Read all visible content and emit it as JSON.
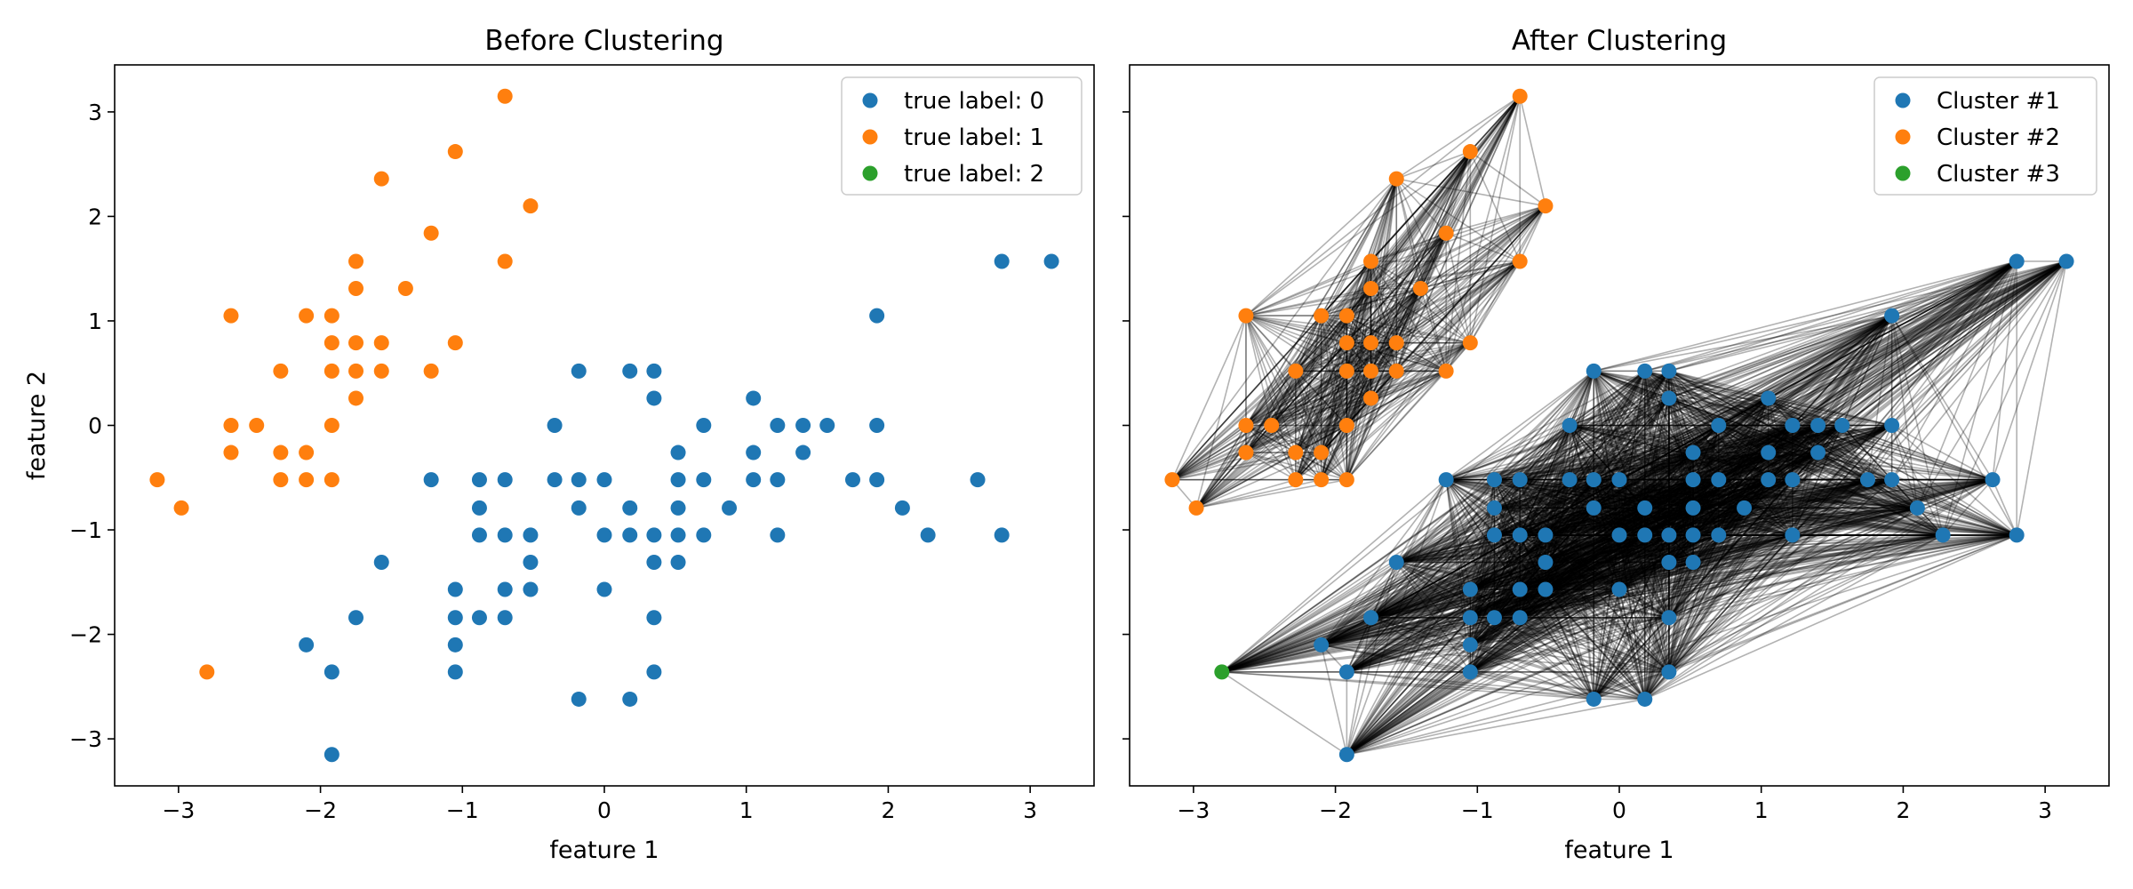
{
  "chart_data": [
    {
      "type": "scatter",
      "title": "Before Clustering",
      "xlabel": "feature 1",
      "ylabel": "feature 2",
      "xlim": [
        -3.45,
        3.45
      ],
      "ylim": [
        -3.45,
        3.45
      ],
      "xticks": [
        -3,
        -2,
        -1,
        0,
        1,
        2,
        3
      ],
      "yticks": [
        -3,
        -2,
        -1,
        0,
        1,
        2,
        3
      ],
      "grid": false,
      "legend_position": "top-right",
      "series": [
        {
          "name": "true label: 0",
          "color": "#1f77b4",
          "points": [
            [
              2.8,
              1.57
            ],
            [
              3.15,
              1.57
            ],
            [
              1.92,
              1.05
            ],
            [
              -0.18,
              0.52
            ],
            [
              0.18,
              0.52
            ],
            [
              0.35,
              0.52
            ],
            [
              0.35,
              0.26
            ],
            [
              1.05,
              0.26
            ],
            [
              -0.35,
              0.0
            ],
            [
              0.7,
              0.0
            ],
            [
              1.22,
              0.0
            ],
            [
              1.4,
              0.0
            ],
            [
              1.57,
              0.0
            ],
            [
              1.92,
              0.0
            ],
            [
              0.52,
              -0.26
            ],
            [
              1.05,
              -0.26
            ],
            [
              1.4,
              -0.26
            ],
            [
              -1.22,
              -0.52
            ],
            [
              -0.88,
              -0.52
            ],
            [
              -0.7,
              -0.52
            ],
            [
              -0.35,
              -0.52
            ],
            [
              -0.18,
              -0.52
            ],
            [
              0.0,
              -0.52
            ],
            [
              0.52,
              -0.52
            ],
            [
              0.7,
              -0.52
            ],
            [
              1.05,
              -0.52
            ],
            [
              1.22,
              -0.52
            ],
            [
              1.75,
              -0.52
            ],
            [
              1.92,
              -0.52
            ],
            [
              2.63,
              -0.52
            ],
            [
              -0.88,
              -0.79
            ],
            [
              -0.18,
              -0.79
            ],
            [
              0.18,
              -0.79
            ],
            [
              0.52,
              -0.79
            ],
            [
              0.88,
              -0.79
            ],
            [
              2.1,
              -0.79
            ],
            [
              -0.88,
              -1.05
            ],
            [
              -0.7,
              -1.05
            ],
            [
              -0.52,
              -1.05
            ],
            [
              0.0,
              -1.05
            ],
            [
              0.18,
              -1.05
            ],
            [
              0.35,
              -1.05
            ],
            [
              0.52,
              -1.05
            ],
            [
              0.7,
              -1.05
            ],
            [
              1.22,
              -1.05
            ],
            [
              2.28,
              -1.05
            ],
            [
              2.8,
              -1.05
            ],
            [
              -1.57,
              -1.31
            ],
            [
              -0.52,
              -1.31
            ],
            [
              0.35,
              -1.31
            ],
            [
              0.52,
              -1.31
            ],
            [
              -1.05,
              -1.57
            ],
            [
              -0.7,
              -1.57
            ],
            [
              -0.52,
              -1.57
            ],
            [
              0.0,
              -1.57
            ],
            [
              -1.75,
              -1.84
            ],
            [
              -1.05,
              -1.84
            ],
            [
              -0.88,
              -1.84
            ],
            [
              -0.7,
              -1.84
            ],
            [
              0.35,
              -1.84
            ],
            [
              -2.1,
              -2.1
            ],
            [
              -1.05,
              -2.1
            ],
            [
              -1.92,
              -2.36
            ],
            [
              -1.05,
              -2.36
            ],
            [
              0.35,
              -2.36
            ],
            [
              -0.18,
              -2.62
            ],
            [
              0.18,
              -2.62
            ],
            [
              -1.92,
              -3.15
            ]
          ]
        },
        {
          "name": "true label: 1",
          "color": "#ff7f0e",
          "points": [
            [
              -0.7,
              3.15
            ],
            [
              -1.05,
              2.62
            ],
            [
              -1.57,
              2.36
            ],
            [
              -0.52,
              2.1
            ],
            [
              -1.22,
              1.84
            ],
            [
              -1.75,
              1.57
            ],
            [
              -0.7,
              1.57
            ],
            [
              -1.75,
              1.31
            ],
            [
              -1.4,
              1.31
            ],
            [
              -2.63,
              1.05
            ],
            [
              -2.1,
              1.05
            ],
            [
              -1.92,
              1.05
            ],
            [
              -1.92,
              0.79
            ],
            [
              -1.75,
              0.79
            ],
            [
              -1.57,
              0.79
            ],
            [
              -1.05,
              0.79
            ],
            [
              -2.28,
              0.52
            ],
            [
              -1.92,
              0.52
            ],
            [
              -1.75,
              0.52
            ],
            [
              -1.57,
              0.52
            ],
            [
              -1.22,
              0.52
            ],
            [
              -1.75,
              0.26
            ],
            [
              -2.63,
              0.0
            ],
            [
              -2.45,
              0.0
            ],
            [
              -1.92,
              0.0
            ],
            [
              -2.63,
              -0.26
            ],
            [
              -2.28,
              -0.26
            ],
            [
              -2.1,
              -0.26
            ],
            [
              -3.15,
              -0.52
            ],
            [
              -2.28,
              -0.52
            ],
            [
              -2.1,
              -0.52
            ],
            [
              -1.92,
              -0.52
            ],
            [
              -2.98,
              -0.79
            ],
            [
              -2.8,
              -2.36
            ]
          ]
        },
        {
          "name": "true label: 2",
          "color": "#2ca02c",
          "points": []
        }
      ]
    },
    {
      "type": "scatter",
      "title": "After Clustering",
      "xlabel": "feature 1",
      "ylabel": "",
      "xlim": [
        -3.45,
        3.45
      ],
      "ylim": [
        -3.45,
        3.45
      ],
      "xticks": [
        -3,
        -2,
        -1,
        0,
        1,
        2,
        3
      ],
      "yticks": [
        -3,
        -2,
        -1,
        0,
        1,
        2,
        3
      ],
      "show_ytick_labels": false,
      "grid": false,
      "legend_position": "top-right",
      "edges": "complete graph between points of the same cluster",
      "edge_color": "#000000",
      "series": [
        {
          "name": "Cluster #1",
          "color": "#1f77b4",
          "same_points_as": "true label: 0"
        },
        {
          "name": "Cluster #2",
          "color": "#ff7f0e",
          "same_points_as": "true label: 1",
          "exclude": [
            [
              -2.8,
              -2.36
            ]
          ]
        },
        {
          "name": "Cluster #3",
          "color": "#2ca02c",
          "points": [
            [
              -2.8,
              -2.36
            ]
          ],
          "connected_to": "Cluster #1"
        }
      ]
    }
  ]
}
